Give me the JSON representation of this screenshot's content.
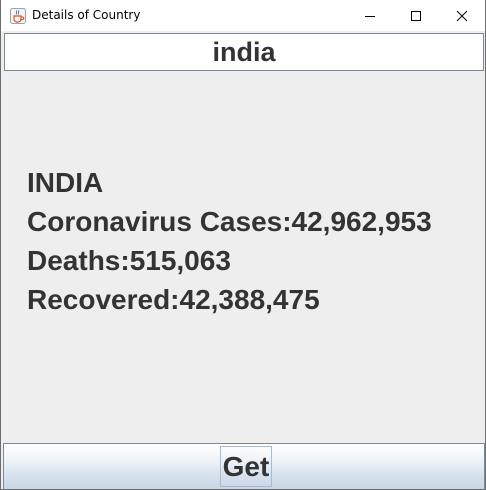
{
  "window": {
    "title": "Details of Country",
    "icon": "java-cup-icon"
  },
  "search": {
    "value": "india"
  },
  "details": {
    "country": "INDIA",
    "cases": "Coronavirus Cases:42,962,953",
    "deaths": "Deaths:515,063",
    "recovered": "Recovered:42,388,475"
  },
  "actions": {
    "get_label": "Get"
  },
  "colors": {
    "text": "#333333",
    "background": "#eeeeee",
    "border": "#7a8a99"
  }
}
